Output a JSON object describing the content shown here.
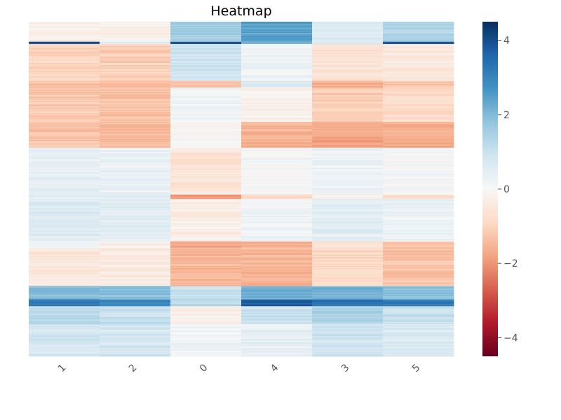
{
  "chart_data": {
    "type": "heatmap",
    "title": "Heatmap",
    "xlabel": "",
    "ylabel": "",
    "columns": [
      "1",
      "2",
      "0",
      "4",
      "3",
      "5"
    ],
    "row_count": 300,
    "colormap": "RdBu",
    "color_range": [
      -4.5,
      4.5
    ],
    "colorbar": {
      "ticks": [
        4,
        2,
        0,
        -2,
        -4
      ],
      "tick_labels": [
        "4",
        "2",
        "0",
        "−2",
        "−4"
      ],
      "placement": "right"
    },
    "grid": false,
    "segments": [
      {
        "rows": [
          0,
          17
        ],
        "values": [
          -0.3,
          -0.2,
          1.6,
          2.4,
          0.6,
          1.4
        ]
      },
      {
        "rows": [
          18,
          19
        ],
        "values": [
          4.2,
          0.5,
          4.0,
          2.0,
          0.6,
          3.8
        ]
      },
      {
        "rows": [
          20,
          52
        ],
        "values": [
          -1.0,
          -1.1,
          0.9,
          0.2,
          -0.6,
          -0.5
        ]
      },
      {
        "rows": [
          53,
          58
        ],
        "values": [
          -1.4,
          -1.4,
          -1.5,
          0.7,
          -1.6,
          -1.3
        ]
      },
      {
        "rows": [
          59,
          89
        ],
        "values": [
          -1.2,
          -1.3,
          0.2,
          -0.2,
          -1.1,
          -0.8
        ]
      },
      {
        "rows": [
          90,
          112
        ],
        "values": [
          -1.3,
          -1.4,
          -0.1,
          -1.6,
          -1.8,
          -1.7
        ]
      },
      {
        "rows": [
          113,
          154
        ],
        "values": [
          0.4,
          0.3,
          -0.6,
          0.1,
          0.3,
          0.1
        ]
      },
      {
        "rows": [
          155,
          158
        ],
        "values": [
          0.5,
          0.5,
          -1.8,
          -1.0,
          -0.2,
          -0.8
        ]
      },
      {
        "rows": [
          159,
          196
        ],
        "values": [
          0.6,
          0.5,
          -0.3,
          0.2,
          0.5,
          0.3
        ]
      },
      {
        "rows": [
          197,
          202
        ],
        "values": [
          0.1,
          -0.2,
          -1.8,
          -1.6,
          -0.6,
          -1.3
        ]
      },
      {
        "rows": [
          203,
          236
        ],
        "values": [
          -0.5,
          -0.4,
          -1.5,
          -1.5,
          -0.9,
          -1.3
        ]
      },
      {
        "rows": [
          237,
          248
        ],
        "values": [
          2.0,
          1.9,
          1.0,
          2.2,
          2.1,
          1.9
        ]
      },
      {
        "rows": [
          249,
          254
        ],
        "values": [
          3.2,
          3.0,
          1.2,
          3.8,
          3.4,
          3.2
        ]
      },
      {
        "rows": [
          255,
          270
        ],
        "values": [
          1.2,
          1.1,
          -0.2,
          1.0,
          1.4,
          1.0
        ]
      },
      {
        "rows": [
          271,
          299
        ],
        "values": [
          0.8,
          0.8,
          0.2,
          0.4,
          0.9,
          0.7
        ]
      }
    ]
  }
}
